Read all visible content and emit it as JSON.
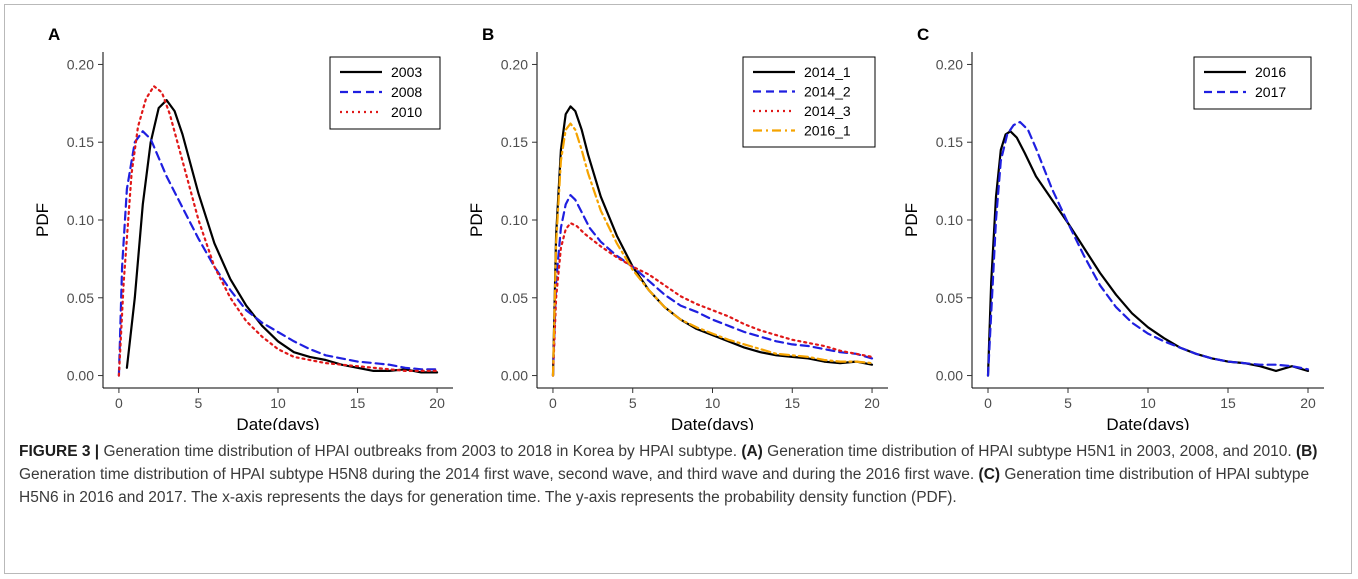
{
  "chart_data": [
    {
      "type": "line",
      "panel_label": "A",
      "xlabel": "Date(days)",
      "ylabel": "PDF",
      "xlim": [
        -1,
        21
      ],
      "ylim": [
        -0.008,
        0.208
      ],
      "xticks": [
        0,
        5,
        10,
        15,
        20
      ],
      "xtick_labels": [
        "0",
        "5",
        "10",
        "15",
        "20"
      ],
      "yticks": [
        0.0,
        0.05,
        0.1,
        0.15,
        0.2
      ],
      "ytick_labels": [
        "0.00",
        "0.05",
        "0.10",
        "0.15",
        "0.20"
      ],
      "grid": false,
      "legend_position": "top-right",
      "series": [
        {
          "name": "2003",
          "color": "#000000",
          "dash": "solid",
          "x": [
            0.5,
            1.0,
            1.5,
            2.0,
            2.5,
            3.0,
            3.5,
            4.0,
            5.0,
            6.0,
            7.0,
            8.0,
            9.0,
            10.0,
            11.0,
            12.0,
            13.0,
            14.0,
            15.0,
            16.0,
            17.0,
            18.0,
            19.0,
            20.0
          ],
          "y": [
            0.005,
            0.05,
            0.11,
            0.15,
            0.172,
            0.177,
            0.17,
            0.155,
            0.117,
            0.085,
            0.062,
            0.045,
            0.032,
            0.022,
            0.015,
            0.012,
            0.01,
            0.007,
            0.005,
            0.003,
            0.003,
            0.004,
            0.002,
            0.002
          ]
        },
        {
          "name": "2008",
          "color": "#1f1fe0",
          "dash": "dash",
          "x": [
            0.0,
            0.2,
            0.5,
            1.0,
            1.5,
            2.0,
            2.5,
            3.0,
            4.0,
            5.0,
            6.0,
            7.0,
            8.0,
            9.0,
            10.0,
            11.0,
            12.0,
            13.0,
            14.0,
            15.0,
            16.0,
            17.0,
            18.0,
            19.0,
            20.0
          ],
          "y": [
            0.0,
            0.07,
            0.12,
            0.15,
            0.157,
            0.152,
            0.14,
            0.128,
            0.108,
            0.088,
            0.07,
            0.055,
            0.042,
            0.034,
            0.028,
            0.022,
            0.017,
            0.013,
            0.011,
            0.009,
            0.008,
            0.007,
            0.005,
            0.004,
            0.004
          ]
        },
        {
          "name": "2010",
          "color": "#e01818",
          "dash": "dot",
          "x": [
            0.0,
            0.3,
            0.8,
            1.2,
            1.7,
            2.2,
            2.7,
            3.2,
            4.0,
            5.0,
            6.0,
            7.0,
            8.0,
            9.0,
            10.0,
            11.0,
            12.0,
            13.0,
            14.0,
            15.0,
            16.0,
            17.0,
            18.0,
            19.0,
            20.0
          ],
          "y": [
            0.0,
            0.06,
            0.13,
            0.16,
            0.178,
            0.186,
            0.182,
            0.168,
            0.138,
            0.1,
            0.07,
            0.05,
            0.035,
            0.025,
            0.017,
            0.012,
            0.01,
            0.008,
            0.007,
            0.006,
            0.005,
            0.004,
            0.003,
            0.003,
            0.003
          ]
        }
      ]
    },
    {
      "type": "line",
      "panel_label": "B",
      "xlabel": "Date(days)",
      "ylabel": "PDF",
      "xlim": [
        -1,
        21
      ],
      "ylim": [
        -0.008,
        0.208
      ],
      "xticks": [
        0,
        5,
        10,
        15,
        20
      ],
      "xtick_labels": [
        "0",
        "5",
        "10",
        "15",
        "20"
      ],
      "yticks": [
        0.0,
        0.05,
        0.1,
        0.15,
        0.2
      ],
      "ytick_labels": [
        "0.00",
        "0.05",
        "0.10",
        "0.15",
        "0.20"
      ],
      "grid": false,
      "legend_position": "top-right",
      "series": [
        {
          "name": "2014_1",
          "color": "#000000",
          "dash": "solid",
          "x": [
            0.0,
            0.2,
            0.5,
            0.8,
            1.1,
            1.4,
            1.8,
            2.2,
            3.0,
            4.0,
            5.0,
            6.0,
            7.0,
            8.0,
            9.0,
            10.0,
            11.0,
            12.0,
            13.0,
            14.0,
            15.0,
            16.0,
            17.0,
            18.0,
            19.0,
            20.0
          ],
          "y": [
            0.0,
            0.09,
            0.145,
            0.168,
            0.173,
            0.17,
            0.158,
            0.142,
            0.115,
            0.09,
            0.07,
            0.055,
            0.044,
            0.036,
            0.03,
            0.026,
            0.022,
            0.018,
            0.015,
            0.013,
            0.012,
            0.011,
            0.009,
            0.008,
            0.009,
            0.007
          ]
        },
        {
          "name": "2014_2",
          "color": "#1f1fe0",
          "dash": "dash",
          "x": [
            0.0,
            0.2,
            0.5,
            0.8,
            1.1,
            1.4,
            1.8,
            2.3,
            3.0,
            4.0,
            5.0,
            6.0,
            7.0,
            8.0,
            9.0,
            10.0,
            11.0,
            12.0,
            13.0,
            14.0,
            15.0,
            16.0,
            17.0,
            18.0,
            19.0,
            20.0
          ],
          "y": [
            0.0,
            0.06,
            0.095,
            0.11,
            0.116,
            0.113,
            0.105,
            0.095,
            0.086,
            0.077,
            0.07,
            0.061,
            0.052,
            0.045,
            0.041,
            0.036,
            0.032,
            0.028,
            0.025,
            0.022,
            0.02,
            0.019,
            0.017,
            0.015,
            0.014,
            0.011
          ]
        },
        {
          "name": "2014_3",
          "color": "#e01818",
          "dash": "dot",
          "x": [
            0.0,
            0.2,
            0.5,
            0.8,
            1.1,
            1.5,
            2.0,
            3.0,
            4.0,
            5.0,
            6.0,
            7.0,
            8.0,
            9.0,
            10.0,
            11.0,
            12.0,
            13.0,
            14.0,
            15.0,
            16.0,
            17.0,
            18.0,
            19.0,
            20.0
          ],
          "y": [
            0.0,
            0.05,
            0.082,
            0.094,
            0.098,
            0.096,
            0.091,
            0.083,
            0.076,
            0.07,
            0.065,
            0.058,
            0.051,
            0.046,
            0.042,
            0.038,
            0.033,
            0.029,
            0.026,
            0.023,
            0.021,
            0.019,
            0.016,
            0.014,
            0.012
          ]
        },
        {
          "name": "2016_1",
          "color": "#f5a300",
          "dash": "dashdot",
          "x": [
            0.0,
            0.2,
            0.5,
            0.8,
            1.1,
            1.4,
            1.8,
            2.2,
            3.0,
            4.0,
            5.0,
            6.0,
            7.0,
            8.0,
            9.0,
            10.0,
            11.0,
            12.0,
            13.0,
            14.0,
            15.0,
            16.0,
            17.0,
            18.0,
            19.0,
            20.0
          ],
          "y": [
            0.0,
            0.085,
            0.138,
            0.158,
            0.162,
            0.158,
            0.145,
            0.13,
            0.106,
            0.085,
            0.068,
            0.055,
            0.044,
            0.036,
            0.031,
            0.027,
            0.023,
            0.02,
            0.017,
            0.014,
            0.013,
            0.012,
            0.01,
            0.009,
            0.009,
            0.008
          ]
        }
      ]
    },
    {
      "type": "line",
      "panel_label": "C",
      "xlabel": "Date(days)",
      "ylabel": "PDF",
      "xlim": [
        -1,
        21
      ],
      "ylim": [
        -0.008,
        0.208
      ],
      "xticks": [
        0,
        5,
        10,
        15,
        20
      ],
      "xtick_labels": [
        "0",
        "5",
        "10",
        "15",
        "20"
      ],
      "yticks": [
        0.0,
        0.05,
        0.1,
        0.15,
        0.2
      ],
      "ytick_labels": [
        "0.00",
        "0.05",
        "0.10",
        "0.15",
        "0.20"
      ],
      "grid": false,
      "legend_position": "top-right",
      "series": [
        {
          "name": "2016",
          "color": "#000000",
          "dash": "solid",
          "x": [
            0.0,
            0.2,
            0.5,
            0.8,
            1.1,
            1.4,
            1.8,
            2.3,
            3.0,
            4.0,
            5.0,
            6.0,
            7.0,
            8.0,
            9.0,
            10.0,
            11.0,
            12.0,
            13.0,
            14.0,
            15.0,
            16.0,
            17.0,
            18.0,
            19.0,
            20.0
          ],
          "y": [
            0.0,
            0.06,
            0.115,
            0.145,
            0.155,
            0.157,
            0.153,
            0.143,
            0.128,
            0.113,
            0.098,
            0.082,
            0.066,
            0.052,
            0.04,
            0.031,
            0.024,
            0.018,
            0.014,
            0.011,
            0.009,
            0.008,
            0.006,
            0.003,
            0.006,
            0.003
          ]
        },
        {
          "name": "2017",
          "color": "#1f1fe0",
          "dash": "dash",
          "x": [
            0.0,
            0.2,
            0.5,
            0.8,
            1.2,
            1.6,
            2.0,
            2.5,
            3.0,
            4.0,
            5.0,
            6.0,
            7.0,
            8.0,
            9.0,
            10.0,
            11.0,
            12.0,
            13.0,
            14.0,
            15.0,
            16.0,
            17.0,
            18.0,
            19.0,
            20.0
          ],
          "y": [
            0.0,
            0.04,
            0.1,
            0.138,
            0.155,
            0.161,
            0.163,
            0.158,
            0.146,
            0.12,
            0.098,
            0.077,
            0.058,
            0.044,
            0.034,
            0.027,
            0.022,
            0.018,
            0.014,
            0.011,
            0.009,
            0.008,
            0.007,
            0.007,
            0.006,
            0.004
          ]
        }
      ]
    }
  ],
  "caption": {
    "figure_label": "FIGURE 3",
    "separator": "|",
    "intro": "Generation time distribution of HPAI outbreaks from 2003 to 2018 in Korea by HPAI subtype.",
    "part_a_label": "(A)",
    "part_a_text": "Generation time distribution of HPAI subtype H5N1 in 2003, 2008, and 2010.",
    "part_b_label": "(B)",
    "part_b_text": "Generation time distribution of HPAI subtype H5N8 during the 2014 first wave, second wave, and third wave and during the 2016 first wave.",
    "part_c_label": "(C)",
    "part_c_text": "Generation time distribution of HPAI subtype H5N6 in 2016 and 2017. The x-axis represents the days for generation time. The y-axis represents the probability density function (PDF)."
  }
}
